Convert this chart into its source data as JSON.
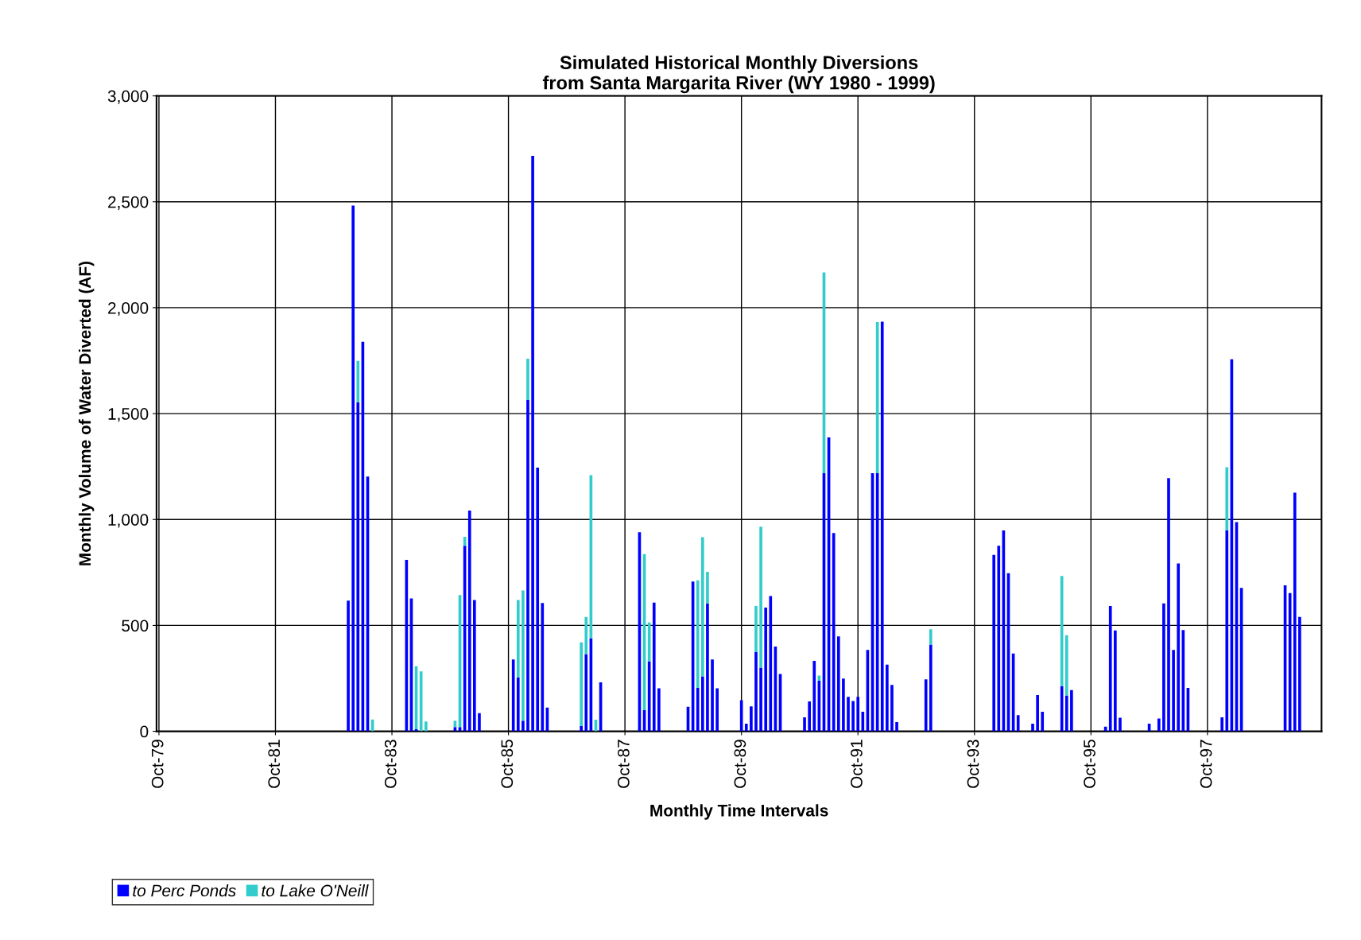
{
  "chart_data": {
    "type": "bar",
    "stacked": true,
    "title": "Simulated Historical Monthly Diversions\nfrom Santa Margarita River (WY 1980 - 1999)",
    "xlabel": "Monthly Time Intervals",
    "ylabel": "Monthly Volume of Water Diverted (AF)",
    "categories": [
      "Oct-79",
      null,
      null,
      null,
      null,
      null,
      null,
      null,
      null,
      null,
      null,
      null,
      null,
      null,
      null,
      null,
      null,
      null,
      null,
      null,
      null,
      null,
      null,
      null,
      "Oct-81",
      null,
      null,
      null,
      null,
      null,
      null,
      null,
      null,
      null,
      null,
      null,
      null,
      null,
      null,
      null,
      null,
      null,
      null,
      null,
      null,
      null,
      null,
      null,
      "Oct-83",
      null,
      null,
      null,
      null,
      null,
      null,
      null,
      null,
      null,
      null,
      null,
      null,
      null,
      null,
      null,
      null,
      null,
      null,
      null,
      null,
      null,
      null,
      null,
      "Oct-85",
      null,
      null,
      null,
      null,
      null,
      null,
      null,
      null,
      null,
      null,
      null,
      null,
      null,
      null,
      null,
      null,
      null,
      null,
      null,
      null,
      null,
      null,
      null,
      "Oct-87",
      null,
      null,
      null,
      null,
      null,
      null,
      null,
      null,
      null,
      null,
      null,
      null,
      null,
      null,
      null,
      null,
      null,
      null,
      null,
      null,
      null,
      null,
      null,
      "Oct-89",
      null,
      null,
      null,
      null,
      null,
      null,
      null,
      null,
      null,
      null,
      null,
      null,
      null,
      null,
      null,
      null,
      null,
      null,
      null,
      null,
      null,
      null,
      null,
      "Oct-91",
      null,
      null,
      null,
      null,
      null,
      null,
      null,
      null,
      null,
      null,
      null,
      null,
      null,
      null,
      null,
      null,
      null,
      null,
      null,
      null,
      null,
      null,
      null,
      "Oct-93",
      null,
      null,
      null,
      null,
      null,
      null,
      null,
      null,
      null,
      null,
      null,
      null,
      null,
      null,
      null,
      null,
      null,
      null,
      null,
      null,
      null,
      null,
      null,
      "Oct-95",
      null,
      null,
      null,
      null,
      null,
      null,
      null,
      null,
      null,
      null,
      null,
      null,
      null,
      null,
      null,
      null,
      null,
      null,
      null,
      null,
      null,
      null,
      null,
      "Oct-97",
      null,
      null,
      null,
      null,
      null,
      null,
      null,
      null,
      null,
      null,
      null,
      null,
      null,
      null,
      null,
      null,
      null,
      null,
      null,
      null,
      null,
      null,
      null
    ],
    "series": [
      {
        "name": "to Perc Ponds",
        "color": "#0000ff",
        "values": [
          0,
          0,
          0,
          0,
          0,
          0,
          0,
          0,
          0,
          0,
          0,
          0,
          0,
          0,
          0,
          0,
          0,
          0,
          0,
          0,
          0,
          0,
          0,
          0,
          0,
          0,
          0,
          0,
          0,
          0,
          0,
          0,
          0,
          0,
          0,
          0,
          0,
          0,
          0,
          617,
          2482,
          1554,
          1839,
          1203,
          0,
          0,
          0,
          0,
          0,
          0,
          0,
          809,
          627,
          10,
          0,
          0,
          0,
          0,
          0,
          0,
          0,
          20,
          20,
          876,
          1042,
          620,
          86,
          0,
          0,
          0,
          0,
          0,
          0,
          339,
          255,
          50,
          1564,
          2717,
          1245,
          606,
          112,
          0,
          0,
          0,
          0,
          0,
          0,
          25,
          365,
          440,
          0,
          231,
          0,
          0,
          0,
          0,
          0,
          0,
          0,
          940,
          100,
          331,
          608,
          203,
          0,
          0,
          0,
          0,
          0,
          116,
          707,
          205,
          259,
          604,
          339,
          203,
          0,
          0,
          0,
          0,
          147,
          36,
          118,
          374,
          301,
          584,
          639,
          400,
          271,
          0,
          0,
          0,
          0,
          66,
          141,
          333,
          239,
          1219,
          1388,
          936,
          448,
          249,
          163,
          143,
          163,
          92,
          384,
          1219,
          1219,
          1934,
          315,
          219,
          44,
          0,
          0,
          0,
          0,
          0,
          245,
          410,
          0,
          0,
          0,
          0,
          0,
          0,
          0,
          0,
          0,
          0,
          0,
          0,
          833,
          876,
          948,
          747,
          367,
          76,
          0,
          0,
          36,
          171,
          92,
          0,
          0,
          0,
          213,
          169,
          195,
          0,
          0,
          0,
          0,
          0,
          0,
          22,
          592,
          476,
          64,
          0,
          0,
          0,
          0,
          0,
          36,
          0,
          60,
          604,
          1195,
          384,
          793,
          478,
          205,
          0,
          0,
          0,
          0,
          0,
          0,
          66,
          948,
          1757,
          988,
          677,
          0,
          0,
          0,
          0,
          0,
          0,
          0,
          0,
          689,
          653,
          1127,
          540,
          0,
          0,
          0,
          0
        ]
      },
      {
        "name": "to Lake O'Neill",
        "color": "#33cccc",
        "values": [
          0,
          0,
          0,
          0,
          0,
          0,
          0,
          0,
          0,
          0,
          0,
          0,
          0,
          0,
          0,
          0,
          0,
          0,
          0,
          0,
          0,
          0,
          0,
          0,
          0,
          0,
          0,
          0,
          0,
          0,
          0,
          0,
          0,
          0,
          0,
          0,
          0,
          0,
          0,
          0,
          0,
          195,
          0,
          0,
          56,
          0,
          0,
          0,
          0,
          0,
          0,
          0,
          0,
          297,
          283,
          46,
          0,
          0,
          0,
          0,
          0,
          30,
          623,
          42,
          0,
          0,
          0,
          0,
          0,
          0,
          0,
          0,
          0,
          0,
          365,
          615,
          195,
          0,
          0,
          0,
          0,
          0,
          0,
          0,
          0,
          0,
          0,
          395,
          175,
          769,
          55,
          0,
          0,
          0,
          0,
          0,
          0,
          0,
          0,
          0,
          737,
          183,
          0,
          0,
          0,
          0,
          0,
          0,
          0,
          0,
          0,
          508,
          657,
          149,
          0,
          0,
          0,
          0,
          0,
          0,
          0,
          0,
          0,
          218,
          665,
          0,
          0,
          0,
          0,
          0,
          0,
          0,
          0,
          0,
          0,
          0,
          24,
          948,
          0,
          0,
          0,
          0,
          0,
          0,
          0,
          0,
          0,
          0,
          713,
          0,
          0,
          0,
          0,
          0,
          0,
          0,
          0,
          0,
          0,
          72,
          0,
          0,
          0,
          0,
          0,
          0,
          0,
          0,
          0,
          0,
          0,
          0,
          0,
          0,
          0,
          0,
          0,
          0,
          0,
          0,
          0,
          0,
          0,
          0,
          0,
          0,
          520,
          285,
          0,
          0,
          0,
          0,
          0,
          0,
          0,
          0,
          0,
          0,
          0,
          0,
          0,
          0,
          0,
          0,
          0,
          0,
          0,
          0,
          0,
          0,
          0,
          0,
          0,
          0,
          0,
          0,
          0,
          0,
          0,
          0,
          299,
          0,
          0,
          0,
          0,
          0,
          0,
          0,
          0,
          0,
          0,
          0,
          0,
          0,
          0,
          0,
          0,
          0,
          0,
          0
        ]
      }
    ],
    "ylim": [
      0,
      3000
    ],
    "yticks": [
      0,
      500,
      {
        "value": 1000,
        "label": "1,000"
      },
      {
        "value": 1500,
        "label": "1,500"
      },
      {
        "value": 2000,
        "label": "2,000"
      },
      {
        "value": 2500,
        "label": "2,500"
      },
      {
        "value": 3000,
        "label": "3,000"
      }
    ],
    "grid": true,
    "legend": "bottom left"
  }
}
